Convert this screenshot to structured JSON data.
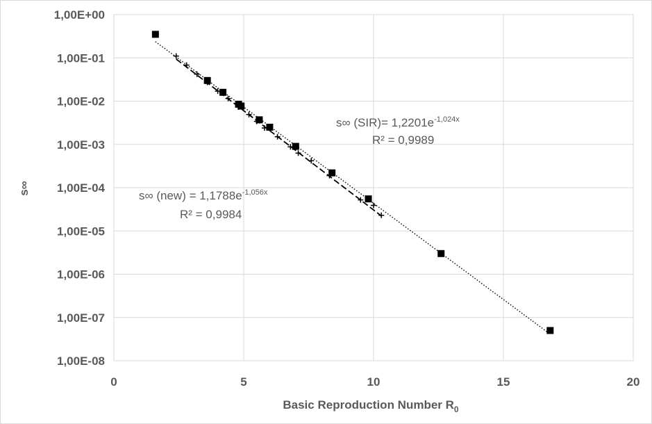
{
  "chart_data": {
    "type": "scatter",
    "xlabel": "Basic Reproduction Number R",
    "xlabel_sub": "0",
    "ylabel": "s∞",
    "xlim": [
      0,
      20
    ],
    "ylim": [
      1e-08,
      1
    ],
    "y_scale": "log",
    "grid": true,
    "x_ticks": [
      0,
      5,
      10,
      15,
      20
    ],
    "x_tick_labels": [
      "0",
      "5",
      "10",
      "15",
      "20"
    ],
    "y_ticks": [
      1,
      0.1,
      0.01,
      0.001,
      0.0001,
      1e-05,
      1e-06,
      1e-07,
      1e-08
    ],
    "y_tick_labels": [
      "1,00E+00",
      "1,00E-01",
      "1,00E-02",
      "1,00E-03",
      "1,00E-04",
      "1,00E-05",
      "1,00E-06",
      "1,00E-07",
      "1,00E-08"
    ],
    "series": [
      {
        "marker": "square",
        "color": "#000000",
        "trendline": {
          "style": "dotted",
          "a": 1.2201,
          "b": -1.024,
          "x_range": [
            1.6,
            16.8
          ]
        },
        "x": [
          1.6,
          3.6,
          4.2,
          4.8,
          4.9,
          5.6,
          6.0,
          7.0,
          8.4,
          9.8,
          12.6,
          16.8
        ],
        "y": [
          0.35,
          0.03,
          0.016,
          0.0085,
          0.0077,
          0.0037,
          0.0025,
          0.0009,
          0.00022,
          5.5e-05,
          3e-06,
          5e-08
        ]
      },
      {
        "marker": "plus",
        "color": "#000000",
        "trendline": {
          "style": "dashed",
          "a": 1.1788,
          "b": -1.056,
          "x_range": [
            2.4,
            10.3
          ]
        },
        "x": [
          2.4,
          2.8,
          3.2,
          3.6,
          4.0,
          4.4,
          4.8,
          5.2,
          5.5,
          5.8,
          6.3,
          6.8,
          7.1,
          7.6,
          8.3,
          9.5,
          10.0,
          10.3
        ],
        "y": [
          0.11,
          0.068,
          0.042,
          0.027,
          0.017,
          0.0115,
          0.0073,
          0.0049,
          0.0034,
          0.0024,
          0.0015,
          0.00088,
          0.00063,
          0.00042,
          0.00019,
          5.2e-05,
          3.9e-05,
          2.3e-05
        ]
      }
    ],
    "annotations": [
      {
        "label": "sir",
        "line1_prefix": "s∞ (SIR)= 1,2201e",
        "line1_exp": "-1,024x",
        "line2": "R² = 0,9989"
      },
      {
        "label": "new",
        "line1_prefix": "s∞ (new) = 1,1788e",
        "line1_exp": "-1,056x",
        "line2": "R² = 0,9984"
      }
    ]
  }
}
